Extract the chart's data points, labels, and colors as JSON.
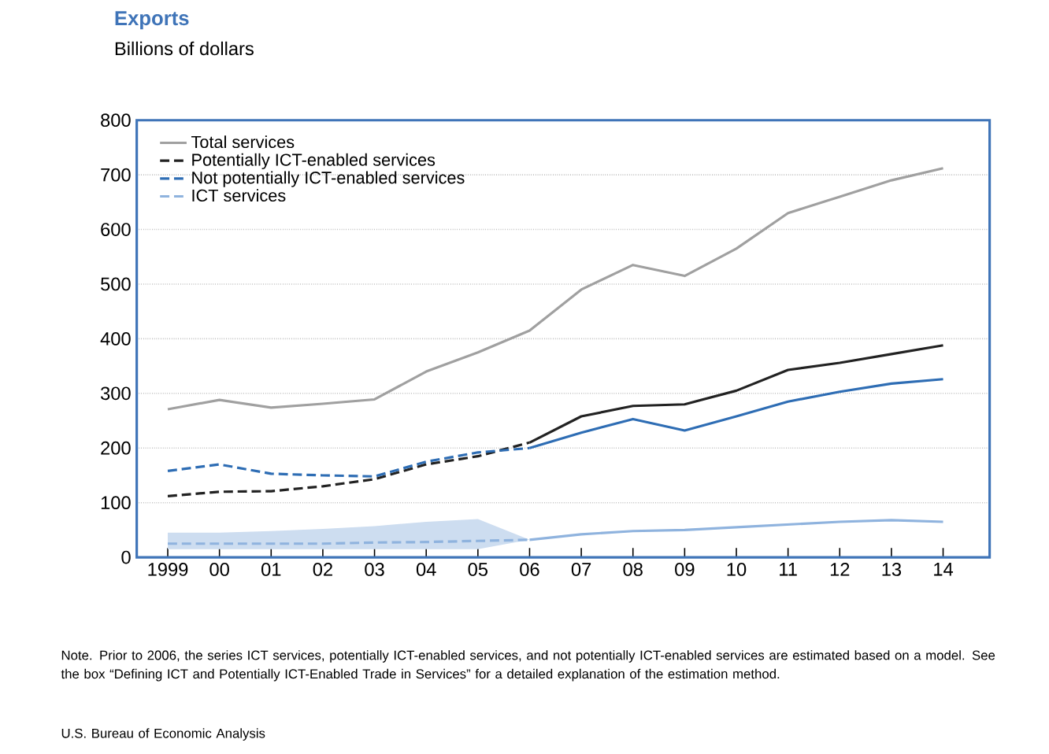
{
  "chart_data": {
    "type": "line",
    "title": "Exports",
    "subtitle": "Billions of dollars",
    "categories": [
      "1999",
      "00",
      "01",
      "02",
      "03",
      "04",
      "05",
      "06",
      "07",
      "08",
      "09",
      "10",
      "11",
      "12",
      "13",
      "14"
    ],
    "series": [
      {
        "name": "Total services",
        "color": "#a0a0a0",
        "line_style": "solid",
        "values": [
          271,
          288,
          274,
          281,
          289,
          340,
          375,
          415,
          490,
          535,
          515,
          565,
          630,
          660,
          690,
          712
        ]
      },
      {
        "name": "Potentially ICT-enabled services",
        "color": "#222222",
        "line_style": "dashed",
        "values": [
          112,
          120,
          121,
          130,
          143,
          170,
          185,
          210,
          null,
          null,
          null,
          null,
          null,
          null,
          null,
          null
        ]
      },
      {
        "color": "#222222",
        "line_style": "solid",
        "values": [
          null,
          null,
          null,
          null,
          null,
          null,
          null,
          210,
          258,
          277,
          280,
          305,
          343,
          356,
          372,
          388
        ]
      },
      {
        "name": "Not potentially ICT-enabled services",
        "color": "#2e6db4",
        "line_style": "dashed",
        "values": [
          158,
          170,
          153,
          150,
          148,
          175,
          192,
          200,
          null,
          null,
          null,
          null,
          null,
          null,
          null,
          null
        ]
      },
      {
        "color": "#2e6db4",
        "line_style": "solid",
        "values": [
          null,
          null,
          null,
          null,
          null,
          null,
          null,
          200,
          228,
          253,
          232,
          258,
          285,
          303,
          318,
          326
        ]
      },
      {
        "name": "ICT services",
        "color": "#8fb3de",
        "line_style": "dashed",
        "values": [
          25,
          25,
          25,
          25,
          27,
          28,
          30,
          32,
          null,
          null,
          null,
          null,
          null,
          null,
          null,
          null
        ],
        "lower": [
          15,
          15,
          15,
          15,
          15,
          15,
          15,
          32,
          null,
          null,
          null,
          null,
          null,
          null,
          null,
          null
        ],
        "upper": [
          45,
          45,
          48,
          52,
          57,
          65,
          70,
          32,
          null,
          null,
          null,
          null,
          null,
          null,
          null,
          null
        ]
      },
      {
        "color": "#8fb3de",
        "line_style": "solid",
        "values": [
          null,
          null,
          null,
          null,
          null,
          null,
          null,
          32,
          42,
          48,
          50,
          55,
          60,
          65,
          68,
          65
        ]
      }
    ],
    "ylim": [
      0,
      800
    ],
    "yticks": [
      0,
      100,
      200,
      300,
      400,
      500,
      600,
      700,
      800
    ],
    "grid": "y",
    "legend": "top left",
    "marker": "none",
    "annotations": [
      "Note. Prior to 2006, the series ICT services, potentially ICT-enabled services, and not potentially ICT-enabled services are estimated based on a model.  See the box “Defining ICT and Potentially ICT-Enabled Trade in Services” for a detailed explanation of the estimation method.",
      "U.S. Bureau of Economic Analysis"
    ]
  }
}
